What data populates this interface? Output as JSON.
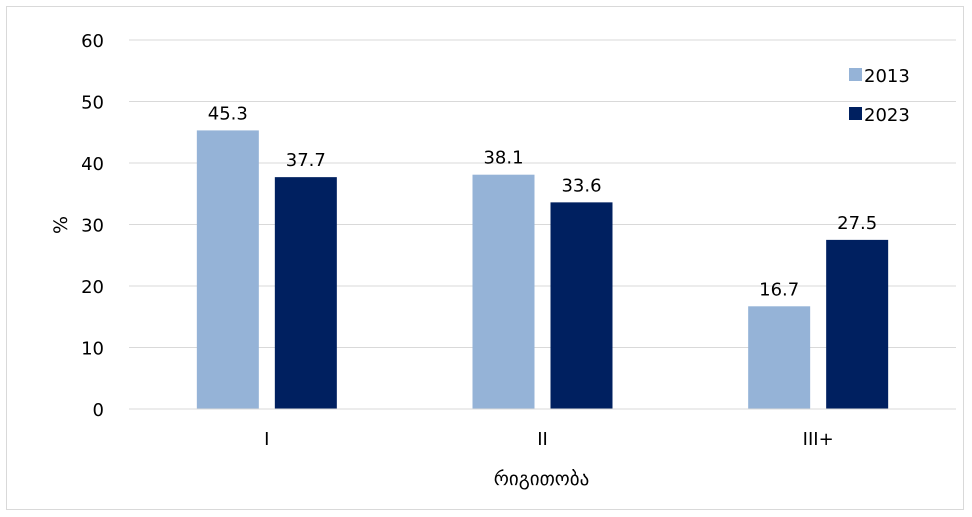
{
  "chart_data": {
    "type": "bar",
    "title": "",
    "xlabel": "რიგითობა",
    "ylabel": "%",
    "categories": [
      "I",
      "II",
      "III+"
    ],
    "series": [
      {
        "name": "2013",
        "values": [
          45.3,
          38.1,
          16.7
        ],
        "color": "#95b3d7"
      },
      {
        "name": "2023",
        "values": [
          37.7,
          33.6,
          27.5
        ],
        "color": "#002060"
      }
    ],
    "ylim": [
      0,
      60
    ],
    "yticks": [
      0,
      10,
      20,
      30,
      40,
      50,
      60
    ],
    "grid": true,
    "legend": "top-right",
    "data_labels": true
  }
}
